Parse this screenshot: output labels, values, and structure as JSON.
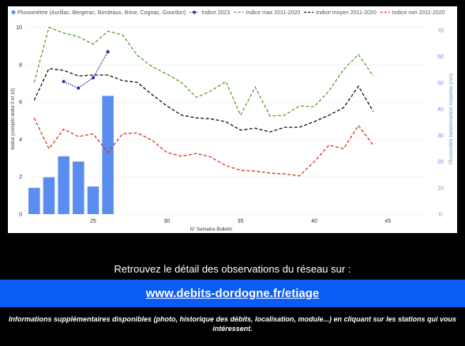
{
  "chart_data": {
    "type": "bar+line",
    "xlabel": "N° Semaine Bulletin",
    "ylabel_left": "Indice (compris entre 0 et 10)",
    "ylabel_right": "Pluviométrie hebdomadaire moyenne (mm)",
    "x_ticks": [
      25,
      30,
      35,
      40,
      45
    ],
    "x_range": [
      20.5,
      47.5
    ],
    "y_left_ticks": [
      0,
      2,
      4,
      6,
      8,
      10
    ],
    "y_left_range": [
      0,
      10.2
    ],
    "y_right_ticks": [
      0,
      10,
      20,
      30,
      40,
      50,
      60,
      70
    ],
    "y_right_range": [
      0,
      72.5
    ],
    "legend": [
      {
        "key": "pluvio",
        "label": "Pluviométrie (Aurillac, Bergerac, Bordeaux, Brive, Cognac, Gourdon)",
        "color": "#5b8cf0",
        "style": "bar"
      },
      {
        "key": "i2023",
        "label": "Indice 2023",
        "color": "#1e2fa8",
        "style": "dotted-marker"
      },
      {
        "key": "imax",
        "label": "Indice max 2011-2020",
        "color": "#5aa02c",
        "style": "dashed"
      },
      {
        "key": "imoy",
        "label": "Indice moyen 2011-2020",
        "color": "#111111",
        "style": "dashed"
      },
      {
        "key": "imin",
        "label": "Indice min 2011-2020",
        "color": "#d03a1e",
        "style": "dashed"
      }
    ],
    "bars": {
      "x": [
        21,
        22,
        23,
        24,
        25,
        26
      ],
      "values": [
        10,
        14,
        22,
        20,
        10.5,
        45
      ],
      "color": "#5b8cf0",
      "axis": "right"
    },
    "series": [
      {
        "key": "i2023",
        "axis": "left",
        "color": "#1e2fa8",
        "x": [
          23,
          24,
          25,
          26
        ],
        "y": [
          7.1,
          6.75,
          7.3,
          8.7
        ]
      },
      {
        "key": "imax",
        "axis": "left",
        "color": "#5aa02c",
        "x": [
          21,
          22,
          23,
          24,
          25,
          26,
          27,
          28,
          29,
          30,
          31,
          32,
          33,
          34,
          35,
          36,
          37,
          38,
          39,
          40,
          41,
          42,
          43,
          44
        ],
        "y": [
          7.05,
          10,
          9.7,
          9.5,
          9.1,
          9.8,
          9.6,
          8.5,
          7.9,
          7.5,
          7.05,
          6.25,
          6.6,
          7.1,
          5.3,
          6.8,
          5.25,
          5.3,
          5.8,
          5.75,
          6.6,
          7.75,
          8.55,
          7.4
        ]
      },
      {
        "key": "imoy",
        "axis": "left",
        "color": "#111111",
        "x": [
          21,
          22,
          23,
          24,
          25,
          26,
          27,
          28,
          29,
          30,
          31,
          32,
          33,
          34,
          35,
          36,
          37,
          38,
          39,
          40,
          41,
          42,
          43,
          44
        ],
        "y": [
          6.1,
          7.8,
          7.7,
          7.4,
          7.45,
          7.45,
          7.15,
          7.05,
          6.4,
          5.8,
          5.3,
          5.15,
          5.1,
          4.95,
          4.5,
          4.6,
          4.4,
          4.65,
          4.65,
          4.95,
          5.3,
          5.7,
          6.85,
          5.5
        ]
      },
      {
        "key": "imin",
        "axis": "left",
        "color": "#d03a1e",
        "x": [
          21,
          22,
          23,
          24,
          25,
          26,
          27,
          28,
          29,
          30,
          31,
          32,
          33,
          34,
          35,
          36,
          37,
          38,
          39,
          40,
          41,
          42,
          43,
          44
        ],
        "y": [
          5.15,
          3.5,
          4.55,
          4.15,
          4.3,
          3.3,
          4.3,
          4.35,
          3.95,
          3.3,
          3.1,
          3.25,
          3.05,
          2.6,
          2.35,
          2.3,
          2.2,
          2.15,
          2.05,
          2.8,
          3.7,
          3.5,
          4.75,
          3.7
        ]
      }
    ]
  },
  "footer": {
    "retrouvez": "Retrouvez le détail des observations du réseau sur :",
    "url": "www.debits-dordogne.fr/etiage",
    "info": "Informations supplémentaires disponibles (photo, historique des débits, localisation, module...) en cliquant sur les stations qui vous intéressent."
  }
}
